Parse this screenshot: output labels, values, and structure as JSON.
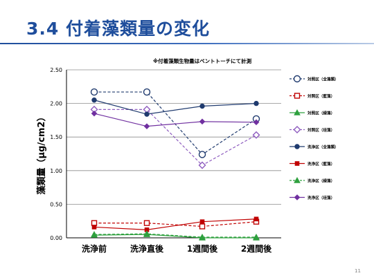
{
  "slide": {
    "title": "3.4 付着藻類量の変化",
    "page_number": "11"
  },
  "chart_data": {
    "type": "line",
    "title": "",
    "note": "※付着藻類生物量はベントトーチにて計測",
    "xlabel": "",
    "ylabel": "藻類量（μg/cm2）",
    "categories": [
      "洗浄前",
      "洗浄直後",
      "1週間後",
      "2週間後"
    ],
    "ylim": [
      0,
      2.5
    ],
    "yticks": [
      "0.00",
      "0.50",
      "1.00",
      "1.50",
      "2.00",
      "2.50"
    ],
    "grid": true,
    "legend_position": "right",
    "series": [
      {
        "name": "対照区（全藻類）",
        "values": [
          2.17,
          2.17,
          1.24,
          1.77
        ],
        "color": "#1f3a6e",
        "dash": true,
        "marker": "circle-open"
      },
      {
        "name": "対照区（藍藻）",
        "values": [
          0.22,
          0.22,
          0.17,
          0.24
        ],
        "color": "#c00000",
        "dash": true,
        "marker": "square-open"
      },
      {
        "name": "対照区（緑藻）",
        "values": [
          0.04,
          0.05,
          0.0,
          0.0
        ],
        "color": "#2ea03e",
        "dash": false,
        "marker": "triangle-filled"
      },
      {
        "name": "対照区（珪藻）",
        "values": [
          1.91,
          1.91,
          1.08,
          1.53
        ],
        "color": "#8e5cbf",
        "dash": true,
        "marker": "diamond-open"
      },
      {
        "name": "洗浄区（全藻類）",
        "values": [
          2.05,
          1.84,
          1.96,
          2.0
        ],
        "color": "#1f3a6e",
        "dash": false,
        "marker": "circle-filled"
      },
      {
        "name": "洗浄区（藍藻）",
        "values": [
          0.16,
          0.12,
          0.24,
          0.28
        ],
        "color": "#c00000",
        "dash": false,
        "marker": "square-filled"
      },
      {
        "name": "洗浄区（緑藻）",
        "values": [
          0.05,
          0.06,
          0.01,
          0.01
        ],
        "color": "#2ea03e",
        "dash": true,
        "marker": "triangle-filled"
      },
      {
        "name": "洗浄区（珪藻）",
        "values": [
          1.85,
          1.66,
          1.73,
          1.72
        ],
        "color": "#7030a0",
        "dash": false,
        "marker": "diamond-filled"
      }
    ]
  }
}
